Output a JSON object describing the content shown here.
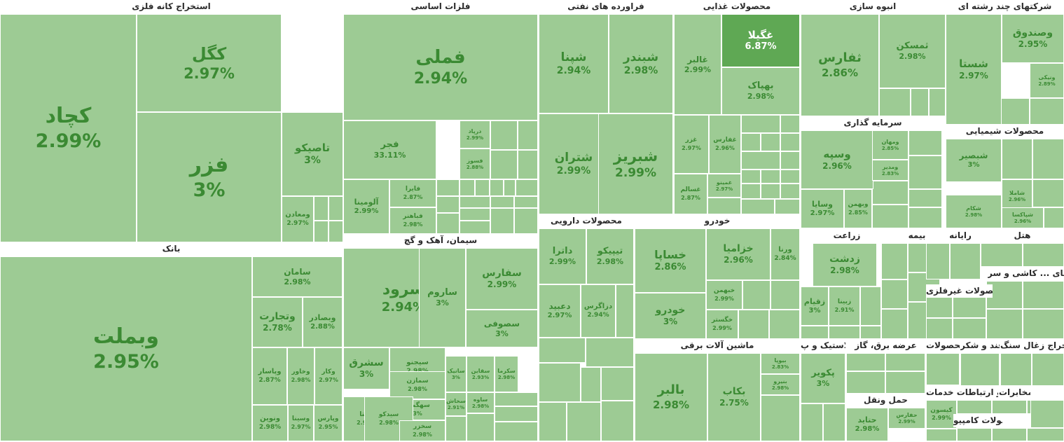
{
  "chart_data": {
    "type": "treemap",
    "colors": {
      "normal": "#9dcb94",
      "strong": "#5fa854",
      "text_normal": "#3b8a33",
      "text_strong": "#ffffff"
    },
    "sectors": [
      {
        "name": "استخراج کانه فلزی",
        "items": [
          {
            "name": "کچاد",
            "value": "2.99%"
          },
          {
            "name": "کگل",
            "value": "2.97%"
          },
          {
            "name": "فزر",
            "value": "3%"
          },
          {
            "name": "تاصیکو",
            "value": "3%"
          },
          {
            "name": "ومعادن",
            "value": "2.97%"
          }
        ]
      },
      {
        "name": "بانک",
        "items": [
          {
            "name": "وبملت",
            "value": "2.95%"
          },
          {
            "name": "سامان",
            "value": "2.98%"
          },
          {
            "name": "وتجارت",
            "value": "2.78%"
          },
          {
            "name": "وبصادر",
            "value": "2.88%"
          },
          {
            "name": "وپاسار",
            "value": "2.87%"
          },
          {
            "name": "وخاور",
            "value": "2.98%"
          },
          {
            "name": "وکار",
            "value": "2.97%"
          },
          {
            "name": "ونوین",
            "value": "2.98%"
          },
          {
            "name": "وسینا",
            "value": "2.97%"
          },
          {
            "name": "وپارس",
            "value": "2.95%"
          }
        ]
      },
      {
        "name": "فلزات اساسی",
        "items": [
          {
            "name": "فملی",
            "value": "2.94%"
          },
          {
            "name": "فجر",
            "value": "33.11%"
          },
          {
            "name": "آلومینا",
            "value": "2.99%"
          },
          {
            "name": "فایرا",
            "value": "2.87%"
          },
          {
            "name": "فباهنر",
            "value": "2.98%"
          },
          {
            "name": "درپاد",
            "value": "2.99%"
          },
          {
            "name": "فسوز",
            "value": "2.88%"
          }
        ]
      },
      {
        "name": "سیمان، آهک و گچ",
        "items": [
          {
            "name": "سرود",
            "value": "2.94%"
          },
          {
            "name": "ساروم",
            "value": "3%"
          },
          {
            "name": "سفارس",
            "value": "2.99%"
          },
          {
            "name": "سصوفی",
            "value": "3%"
          },
          {
            "name": "سشرق",
            "value": "3%"
          },
          {
            "name": "سیجنو",
            "value": "2.98%"
          },
          {
            "name": "سمازن",
            "value": "2.98%"
          },
          {
            "name": "سهگمت",
            "value": "3%"
          },
          {
            "name": "سیتا",
            "value": "2.96%"
          },
          {
            "name": "سیدکو",
            "value": "2.98%"
          },
          {
            "name": "سخزر",
            "value": "2.98%"
          },
          {
            "name": "سخاش",
            "value": "2.91%"
          },
          {
            "name": "ساوه",
            "value": "2.98%"
          },
          {
            "name": "سکرما",
            "value": "2.98%"
          },
          {
            "name": "سقاین",
            "value": "2.93%"
          },
          {
            "name": "سانیک",
            "value": "3%"
          }
        ]
      },
      {
        "name": "فراورده های نفتی",
        "items": [
          {
            "name": "شپنا",
            "value": "2.94%"
          },
          {
            "name": "شبندر",
            "value": "2.98%"
          },
          {
            "name": "شتران",
            "value": "2.99%"
          },
          {
            "name": "شبریز",
            "value": "2.99%"
          }
        ]
      },
      {
        "name": "محصولات غذایی",
        "items": [
          {
            "name": "غگیلا",
            "value": "6.87%",
            "strong": true
          },
          {
            "name": "غالبر",
            "value": "2.99%"
          },
          {
            "name": "بهپاک",
            "value": "2.98%"
          },
          {
            "name": "غزر",
            "value": "2.97%"
          },
          {
            "name": "غفارس",
            "value": "2.96%"
          },
          {
            "name": "غسالم",
            "value": "2.87%"
          },
          {
            "name": "غمینو",
            "value": "2.97%"
          }
        ]
      },
      {
        "name": "انبوه سازی",
        "items": [
          {
            "name": "ثفارس",
            "value": "2.86%"
          },
          {
            "name": "ثمسکن",
            "value": "2.98%"
          }
        ]
      },
      {
        "name": "شرکتهای چند رشته ای",
        "items": [
          {
            "name": "وصندوق",
            "value": "2.95%"
          },
          {
            "name": "شستا",
            "value": "2.97%"
          },
          {
            "name": "ونیکی",
            "value": "2.89%"
          }
        ]
      },
      {
        "name": "سرمایه گذاری",
        "items": [
          {
            "name": "وسپه",
            "value": "2.96%"
          },
          {
            "name": "وسایا",
            "value": "2.97%"
          },
          {
            "name": "وبهمن",
            "value": "2.85%"
          },
          {
            "name": "ومهان",
            "value": "2.85%"
          },
          {
            "name": "ومدیر",
            "value": "2.83%"
          }
        ]
      },
      {
        "name": "محصولات شیمیایی",
        "items": [
          {
            "name": "شبصیر",
            "value": "3%"
          },
          {
            "name": "شاملا",
            "value": "2.96%"
          },
          {
            "name": "شکام",
            "value": "2.98%"
          },
          {
            "name": "شپاکسا",
            "value": "2.96%"
          }
        ]
      },
      {
        "name": "محصولات دارویی",
        "items": [
          {
            "name": "داترا",
            "value": "2.99%"
          },
          {
            "name": "تیپیکو",
            "value": "2.98%"
          },
          {
            "name": "دعبید",
            "value": "2.97%"
          },
          {
            "name": "دزاگرس",
            "value": "2.94%"
          }
        ]
      },
      {
        "name": "خودرو",
        "items": [
          {
            "name": "خساپا",
            "value": "2.86%"
          },
          {
            "name": "خزامیا",
            "value": "2.96%"
          },
          {
            "name": "ورنا",
            "value": "2.84%"
          },
          {
            "name": "خودرو",
            "value": "3%"
          },
          {
            "name": "خبهمن",
            "value": "2.99%"
          },
          {
            "name": "خگستر",
            "value": "2.99%"
          }
        ]
      },
      {
        "name": "ماشین آلات برقی",
        "items": [
          {
            "name": "بالبر",
            "value": "2.98%"
          },
          {
            "name": "بکاب",
            "value": "2.75%"
          },
          {
            "name": "بیوپا",
            "value": "2.83%"
          },
          {
            "name": "بنیرو",
            "value": "2.98%"
          }
        ]
      },
      {
        "name": "زراعت",
        "items": [
          {
            "name": "زدشت",
            "value": "2.98%"
          },
          {
            "name": "زقیام",
            "value": "3%"
          },
          {
            "name": "زبینا",
            "value": "2.91%"
          }
        ]
      },
      {
        "name": "بیمه",
        "items": []
      },
      {
        "name": "رایانه",
        "items": []
      },
      {
        "name": "هتل",
        "items": []
      },
      {
        "name": "فعالیتهای ... کاشی و سر...",
        "items": []
      },
      {
        "name": "محصولات غیرفلزی",
        "items": []
      },
      {
        "name": "لاستیک و پ...",
        "items": [
          {
            "name": "پکویر",
            "value": "3%"
          }
        ]
      },
      {
        "name": "عرضه برق، گاز",
        "items": []
      },
      {
        "name": "حمل ونقل",
        "items": [
          {
            "name": "حفارس",
            "value": "2.99%"
          },
          {
            "name": "حتاید",
            "value": "2.98%"
          }
        ]
      },
      {
        "name": "محصولات ...",
        "items": []
      },
      {
        "name": "قند و شکر",
        "items": [
          {
            "name": "کیسون",
            "value": "2.99%"
          }
        ]
      },
      {
        "name": "استخراج زغال سنگ",
        "items": []
      },
      {
        "name": "اطلاعات و ارتباطات خدمات ...",
        "items": []
      },
      {
        "name": "مخابرات",
        "items": []
      },
      {
        "name": "محصولات کامپیو...",
        "items": []
      }
    ]
  }
}
